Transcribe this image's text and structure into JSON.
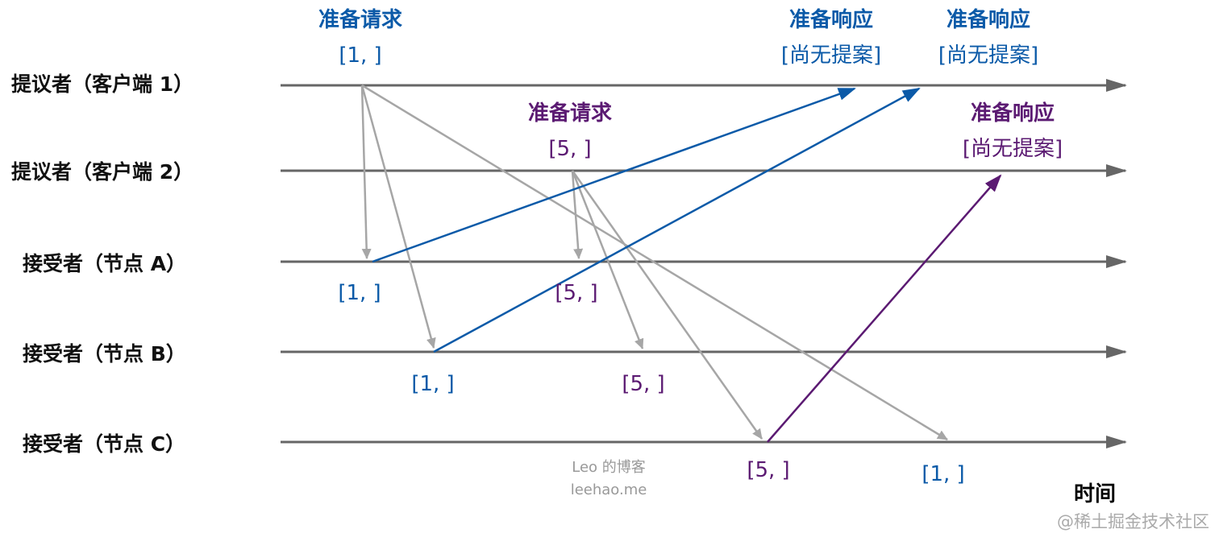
{
  "lanes": [
    "提议者（客户端 1）",
    "提议者（客户端 2）",
    "接受者（节点 A）",
    "接受者（节点 B）",
    "接受者（节点 C）"
  ],
  "time_label": "时间",
  "colors": {
    "proposer1": "#0b5aa8",
    "proposer2": "#5b1a72",
    "request": "#a6a6a6",
    "axis": "#666666"
  },
  "labels": {
    "p1_request_title": "准备请求",
    "p1_request_value": "[1, ]",
    "p2_request_title": "准备请求",
    "p2_request_value": "[5, ]",
    "p1_resp_a_title": "准备响应",
    "p1_resp_a_value": "[尚无提案]",
    "p1_resp_b_title": "准备响应",
    "p1_resp_b_value": "[尚无提案]",
    "p2_resp_c_title": "准备响应",
    "p2_resp_c_value": "[尚无提案]",
    "a_p1": "[1, ]",
    "a_p2": "[5, ]",
    "b_p1": "[1, ]",
    "b_p2": "[5, ]",
    "c_p2": "[5, ]",
    "c_p1": "[1, ]"
  },
  "watermark": {
    "author": "Leo 的博客",
    "site": "leehao.me",
    "platform": "@稀土掘金技术社区"
  }
}
